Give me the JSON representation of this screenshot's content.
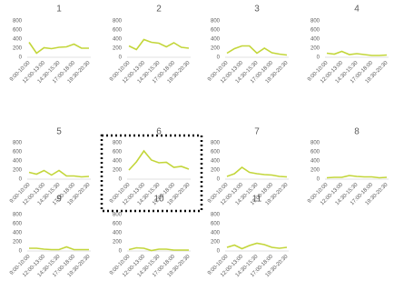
{
  "chart_data": [
    {
      "type": "line",
      "title": "1",
      "categories": [
        "9:00-10:00",
        null,
        "12:00-13:00",
        null,
        "14:30-15:30",
        null,
        "17:00-18:00",
        null,
        "19:30-20:30"
      ],
      "values": [
        330,
        90,
        210,
        190,
        220,
        230,
        290,
        200,
        200
      ],
      "color": "#c3d63a",
      "ylim": [
        0,
        800
      ],
      "yticks": [
        0,
        200,
        400,
        600,
        800
      ]
    },
    {
      "type": "line",
      "title": "2",
      "categories": [
        "9:00-10:00",
        null,
        "12:00-13:00",
        null,
        "14:30-15:30",
        null,
        "17:00-18:00",
        null,
        "19:30-20:30"
      ],
      "values": [
        250,
        170,
        390,
        330,
        310,
        230,
        320,
        220,
        200
      ],
      "color": "#c3d63a",
      "ylim": [
        0,
        800
      ],
      "yticks": [
        0,
        200,
        400,
        600,
        800
      ]
    },
    {
      "type": "line",
      "title": "3",
      "categories": [
        "9:00-10:00",
        null,
        "12:00-13:00",
        null,
        "14:30-15:30",
        null,
        "17:00-18:00",
        null,
        "19:30-20:30"
      ],
      "values": [
        90,
        190,
        250,
        250,
        90,
        200,
        100,
        70,
        50
      ],
      "color": "#c3d63a",
      "ylim": [
        0,
        800
      ],
      "yticks": [
        0,
        200,
        400,
        600,
        800
      ]
    },
    {
      "type": "line",
      "title": "4",
      "categories": [
        "9:00-10:00",
        null,
        "12:00-13:00",
        null,
        "14:30-15:30",
        null,
        "17:00-18:00",
        null,
        "19:30-20:30"
      ],
      "values": [
        90,
        70,
        130,
        60,
        80,
        60,
        40,
        40,
        50
      ],
      "color": "#c3d63a",
      "ylim": [
        0,
        800
      ],
      "yticks": [
        0,
        200,
        400,
        600,
        800
      ]
    },
    {
      "type": "line",
      "title": "5",
      "categories": [
        "9:00-10:00",
        null,
        "12:00-13:00",
        null,
        "14:30-15:30",
        null,
        "17:00-18:00",
        null,
        "19:30-20:30"
      ],
      "values": [
        150,
        110,
        190,
        90,
        190,
        70,
        70,
        50,
        60
      ],
      "color": "#c3d63a",
      "ylim": [
        0,
        800
      ],
      "yticks": [
        0,
        200,
        400,
        600,
        800
      ]
    },
    {
      "type": "line",
      "title": "6",
      "categories": [
        "9:00-10:00",
        null,
        "12:00-13:00",
        null,
        "14:30-15:30",
        null,
        "17:00-18:00",
        null,
        "19:30-20:30"
      ],
      "values": [
        200,
        380,
        620,
        420,
        360,
        370,
        260,
        280,
        220
      ],
      "color": "#c3d63a",
      "ylim": [
        0,
        800
      ],
      "yticks": [
        0,
        200,
        400,
        600,
        800
      ]
    },
    {
      "type": "line",
      "title": "7",
      "categories": [
        "9:00-10:00",
        null,
        "12:00-13:00",
        null,
        "14:30-15:30",
        null,
        "17:00-18:00",
        null,
        "19:30-20:30"
      ],
      "values": [
        60,
        120,
        260,
        150,
        120,
        100,
        90,
        60,
        50
      ],
      "color": "#c3d63a",
      "ylim": [
        0,
        800
      ],
      "yticks": [
        0,
        200,
        400,
        600,
        800
      ]
    },
    {
      "type": "line",
      "title": "8",
      "categories": [
        "9:00-10:00",
        null,
        "12:00-13:00",
        null,
        "14:30-15:30",
        null,
        "17:00-18:00",
        null,
        "19:30-20:30"
      ],
      "values": [
        30,
        40,
        40,
        80,
        60,
        50,
        50,
        30,
        40
      ],
      "color": "#c3d63a",
      "ylim": [
        0,
        800
      ],
      "yticks": [
        0,
        200,
        400,
        600,
        800
      ]
    },
    {
      "type": "line",
      "title": "9",
      "categories": [
        "9:00-10:00",
        null,
        "12:00-13:00",
        null,
        "14:30-15:30",
        null,
        "17:00-18:00",
        null,
        "19:30-20:30"
      ],
      "values": [
        60,
        60,
        40,
        30,
        30,
        90,
        30,
        30,
        30
      ],
      "color": "#c3d63a",
      "ylim": [
        0,
        800
      ],
      "yticks": [
        0,
        200,
        400,
        600,
        800
      ]
    },
    {
      "type": "line",
      "title": "10",
      "categories": [
        "9:00-10:00",
        null,
        "12:00-13:00",
        null,
        "14:30-15:30",
        null,
        "17:00-18:00",
        null,
        "19:30-20:30"
      ],
      "values": [
        30,
        70,
        60,
        10,
        40,
        40,
        20,
        20,
        20
      ],
      "color": "#c3d63a",
      "ylim": [
        0,
        800
      ],
      "yticks": [
        0,
        200,
        400,
        600,
        800
      ]
    },
    {
      "type": "line",
      "title": "11",
      "categories": [
        "9:00-10:00",
        null,
        "12:00-13:00",
        null,
        "14:30-15:30",
        null,
        "17:00-18:00",
        null,
        "19:30-20:30"
      ],
      "values": [
        80,
        130,
        50,
        120,
        170,
        140,
        80,
        60,
        80
      ],
      "color": "#c3d63a",
      "ylim": [
        0,
        800
      ],
      "yticks": [
        0,
        200,
        400,
        600,
        800
      ]
    }
  ]
}
